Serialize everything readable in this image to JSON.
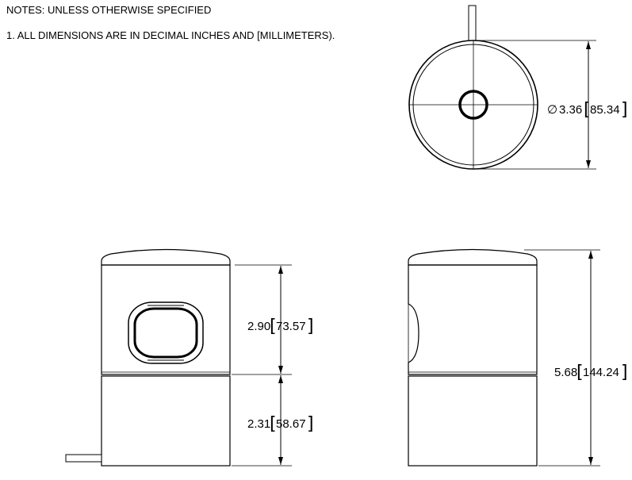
{
  "notes": {
    "heading": "NOTES: UNLESS OTHERWISE SPECIFIED",
    "items": [
      "1. ALL DIMENSIONS ARE IN DECIMAL INCHES AND [MILLIMETERS)."
    ]
  },
  "dimensions": {
    "diameter": {
      "symbol": "∅",
      "inch": "3.36",
      "mm": "85.34"
    },
    "upper_height": {
      "inch": "2.90",
      "mm": "73.57"
    },
    "lower_height": {
      "inch": "2.31",
      "mm": "58.67"
    },
    "total_height": {
      "inch": "5.68",
      "mm": "144.24"
    }
  }
}
